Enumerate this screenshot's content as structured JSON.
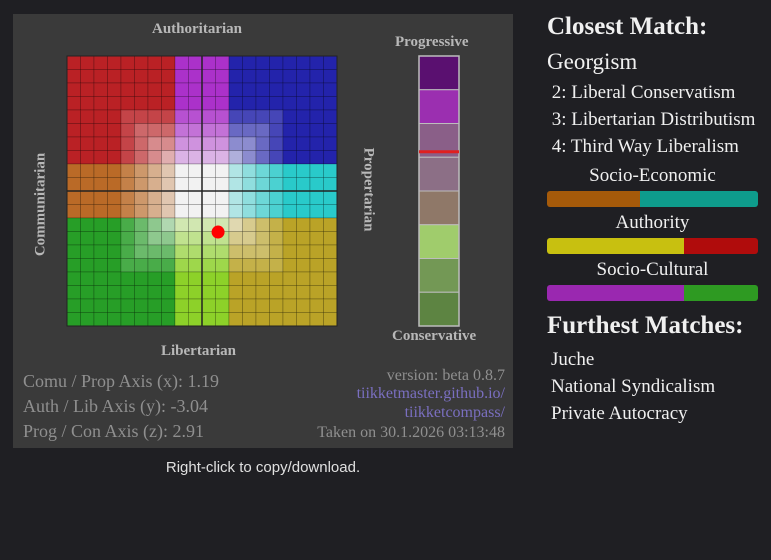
{
  "compass": {
    "labels": {
      "top": "Authoritarian",
      "bottom": "Libertarian",
      "left": "Communitarian",
      "right": "Propertarian",
      "z_top": "Progressive",
      "z_bottom": "Conservative"
    },
    "stats": [
      "Comu / Prop Axis (x): 1.19",
      "Auth / Lib Axis (y): -3.04",
      "Prog / Con Axis (z): 2.91"
    ],
    "meta": {
      "version": "version: beta 0.8.7",
      "link_line1": "tiikketmaster.github.io/",
      "link_line2": "tiikketcompass/",
      "taken": "Taken on 30.1.2026 03:13:48"
    },
    "colors": {
      "card_bg": "#3a3a3a",
      "link": "#7a6fc0",
      "point": "#ff0000",
      "z_marker": "#e02020"
    }
  },
  "chart_data": {
    "type": "scatter",
    "title": "",
    "xlabel": "Communitarian / Propertarian",
    "ylabel": "Libertarian / Authoritarian",
    "xlim": [
      -10,
      10
    ],
    "ylim": [
      -10,
      10
    ],
    "grid": true,
    "points": [
      {
        "x": 1.19,
        "y": -3.04
      }
    ],
    "z_axis": {
      "value": 2.91,
      "range": [
        -10,
        10
      ],
      "top_label": "Progressive",
      "bottom_label": "Conservative"
    },
    "z_colors": [
      "#5a1070",
      "#9b2fb0",
      "#8a5f88",
      "#8c6f86",
      "#8f7868",
      "#a0cc6c",
      "#739855",
      "#5d8442"
    ]
  },
  "hint": "Right-click to copy/download.",
  "sidebar": {
    "closest_title": "Closest Match:",
    "top_match": "Georgism",
    "matches": [
      "2: Liberal Conservatism",
      "3: Libertarian Distributism",
      "4: Third Way Liberalism"
    ],
    "bars": [
      {
        "label": "Socio-Economic",
        "left_color": "#a55a0a",
        "right_color": "#0e9c8c",
        "left_fraction": 0.44
      },
      {
        "label": "Authority",
        "left_color": "#c8c010",
        "right_color": "#b00c0c",
        "left_fraction": 0.65
      },
      {
        "label": "Socio-Cultural",
        "left_color": "#9a28b0",
        "right_color": "#2e9a22",
        "left_fraction": 0.65
      }
    ],
    "furthest_title": "Furthest Matches:",
    "furthest": [
      "Juche",
      "National Syndicalism",
      "Private Autocracy"
    ]
  }
}
